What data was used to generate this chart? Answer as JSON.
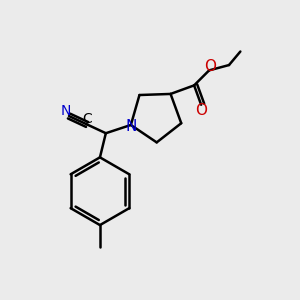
{
  "bg_color": "#ebebeb",
  "bond_color": "#000000",
  "N_color": "#0000cc",
  "O_color": "#cc0000",
  "lw": 1.8,
  "fs": 10,
  "xlim": [
    0,
    10
  ],
  "ylim": [
    0,
    10
  ],
  "figsize": [
    3.0,
    3.0
  ],
  "dpi": 100
}
